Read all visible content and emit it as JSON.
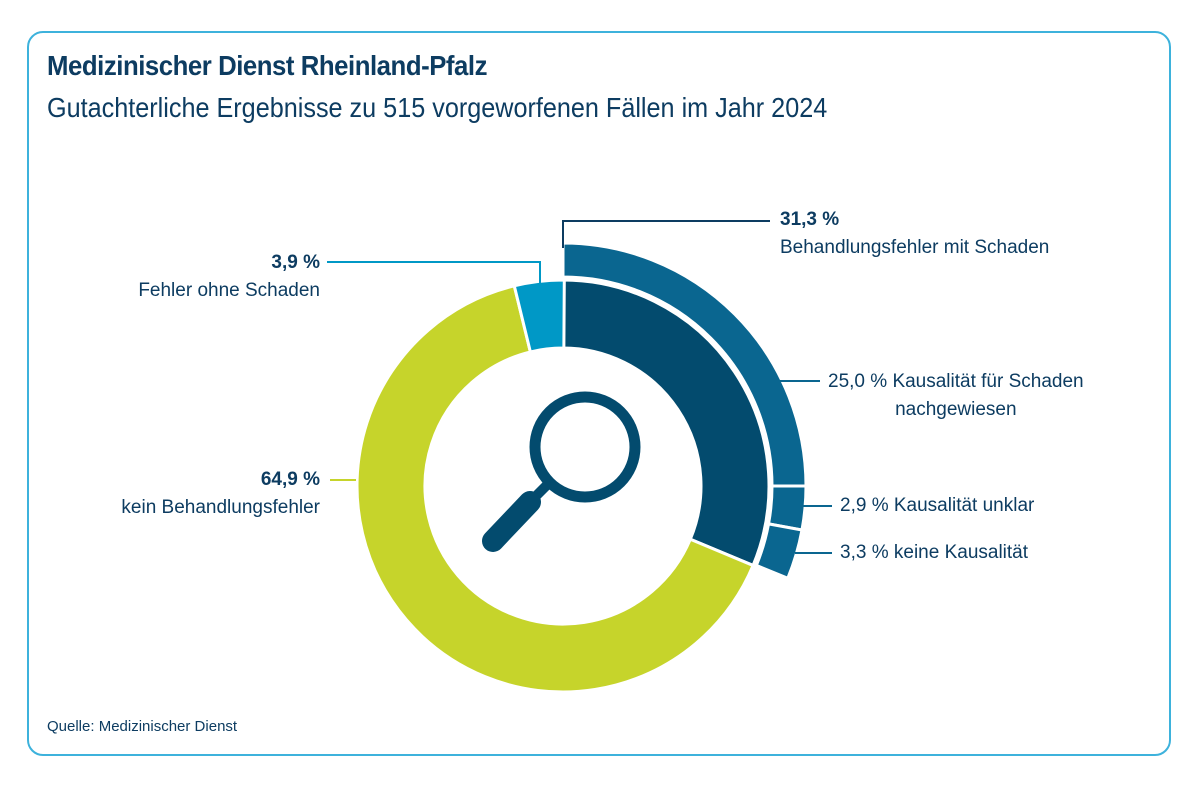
{
  "header": {
    "title": "Medizinischer Dienst Rheinland-Pfalz",
    "subtitle": "Gutachterliche Ergebnisse zu 515 vorgeworfenen Fällen im Jahr 2024"
  },
  "source": "Quelle: Medizinischer Dienst",
  "center_icon": "magnifying-glass-icon",
  "colors": {
    "text": "#0d3c61",
    "frame": "#3db2dc",
    "mit_schaden": "#034b6e",
    "outer_ring": "#0a6690",
    "ohne_schaden": "#0098c6",
    "kein_fehler": "#c6d42b"
  },
  "chart_data": {
    "type": "pie",
    "style": "nested donut",
    "inner_ring": [
      {
        "value": "31,3 %",
        "pct": 31.3,
        "label": "Behandlungsfehler mit Schaden",
        "color": "#034b6e"
      },
      {
        "value": "64,9 %",
        "pct": 64.9,
        "label": "kein Behandlungsfehler",
        "color": "#c6d42b"
      },
      {
        "value": "3,9 %",
        "pct": 3.9,
        "label": "Fehler ohne Schaden",
        "color": "#0098c6"
      }
    ],
    "outer_ring": [
      {
        "value": "25,0 %",
        "pct": 25.0,
        "label": "Kausalität für Schaden",
        "label2": "nachgewiesen",
        "color": "#0a6690"
      },
      {
        "value": "2,9 %",
        "pct": 2.9,
        "label": "Kausalität unklar",
        "color": "#0a6690"
      },
      {
        "value": "3,3 %",
        "pct": 3.3,
        "label": "keine Kausalität",
        "color": "#0a6690"
      }
    ]
  }
}
